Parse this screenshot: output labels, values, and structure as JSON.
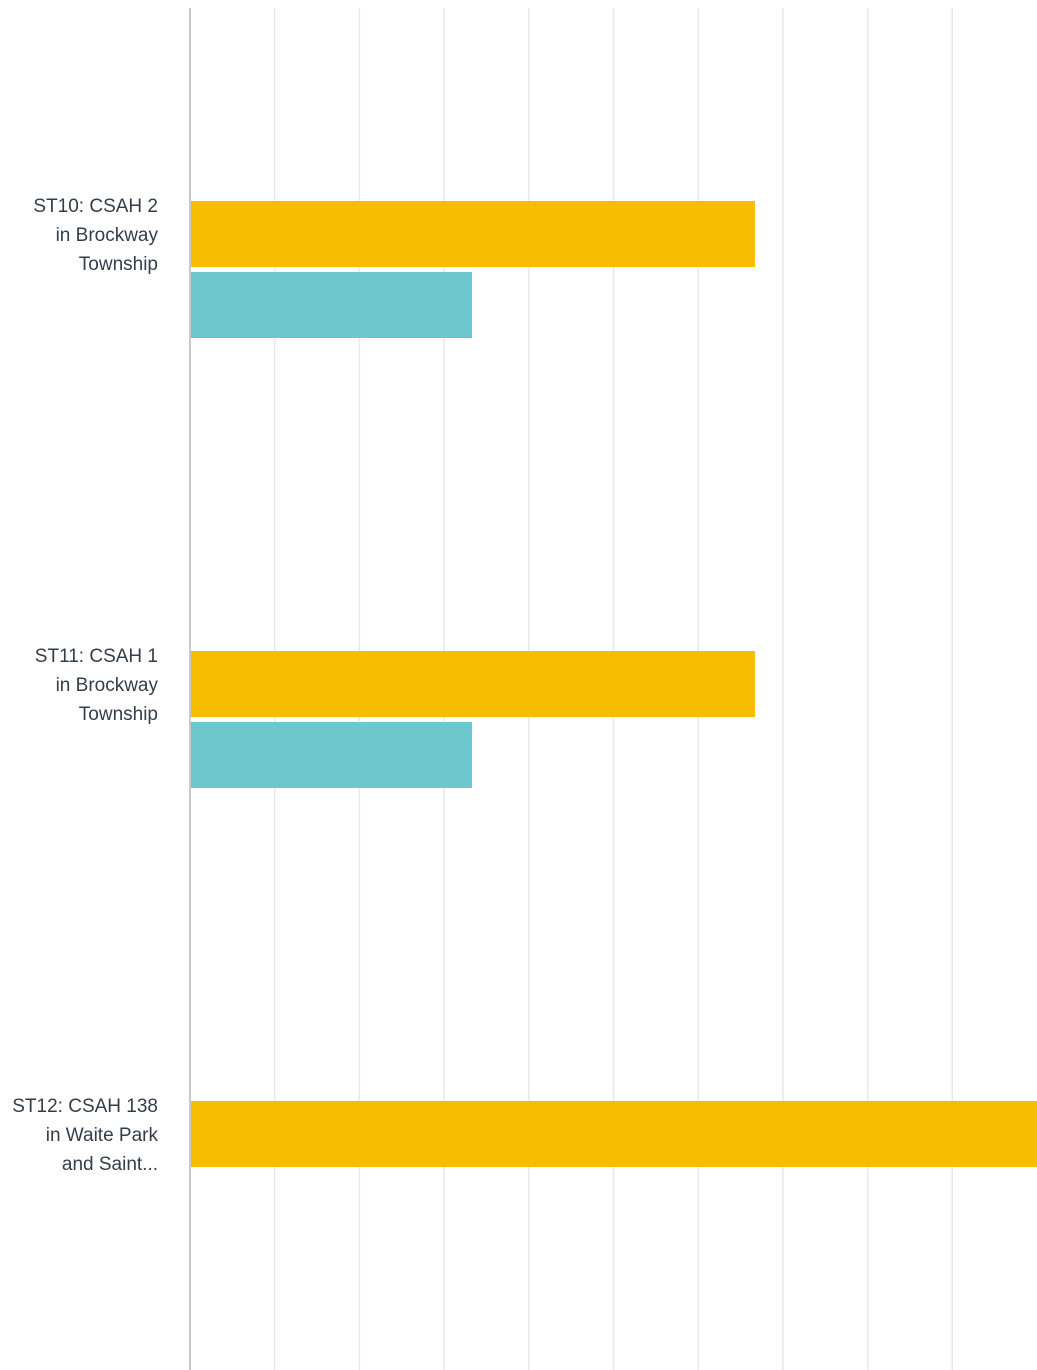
{
  "chart_data": {
    "type": "bar",
    "orientation": "horizontal",
    "categories": [
      [
        "ST10: CSAH 2",
        "in Brockway",
        "Township"
      ],
      [
        "ST11: CSAH 1",
        "in Brockway",
        "Township"
      ],
      [
        "ST12: CSAH 138",
        "in Waite Park",
        "and Saint..."
      ]
    ],
    "series": [
      {
        "color": "#f7bd00",
        "values": [
          6.67,
          6.67,
          10
        ]
      },
      {
        "color": "#6cc8cc",
        "values": [
          3.33,
          3.33,
          0
        ]
      }
    ],
    "xlim": [
      0,
      10
    ],
    "grid": true,
    "grid_step": 1,
    "legend": "none"
  }
}
